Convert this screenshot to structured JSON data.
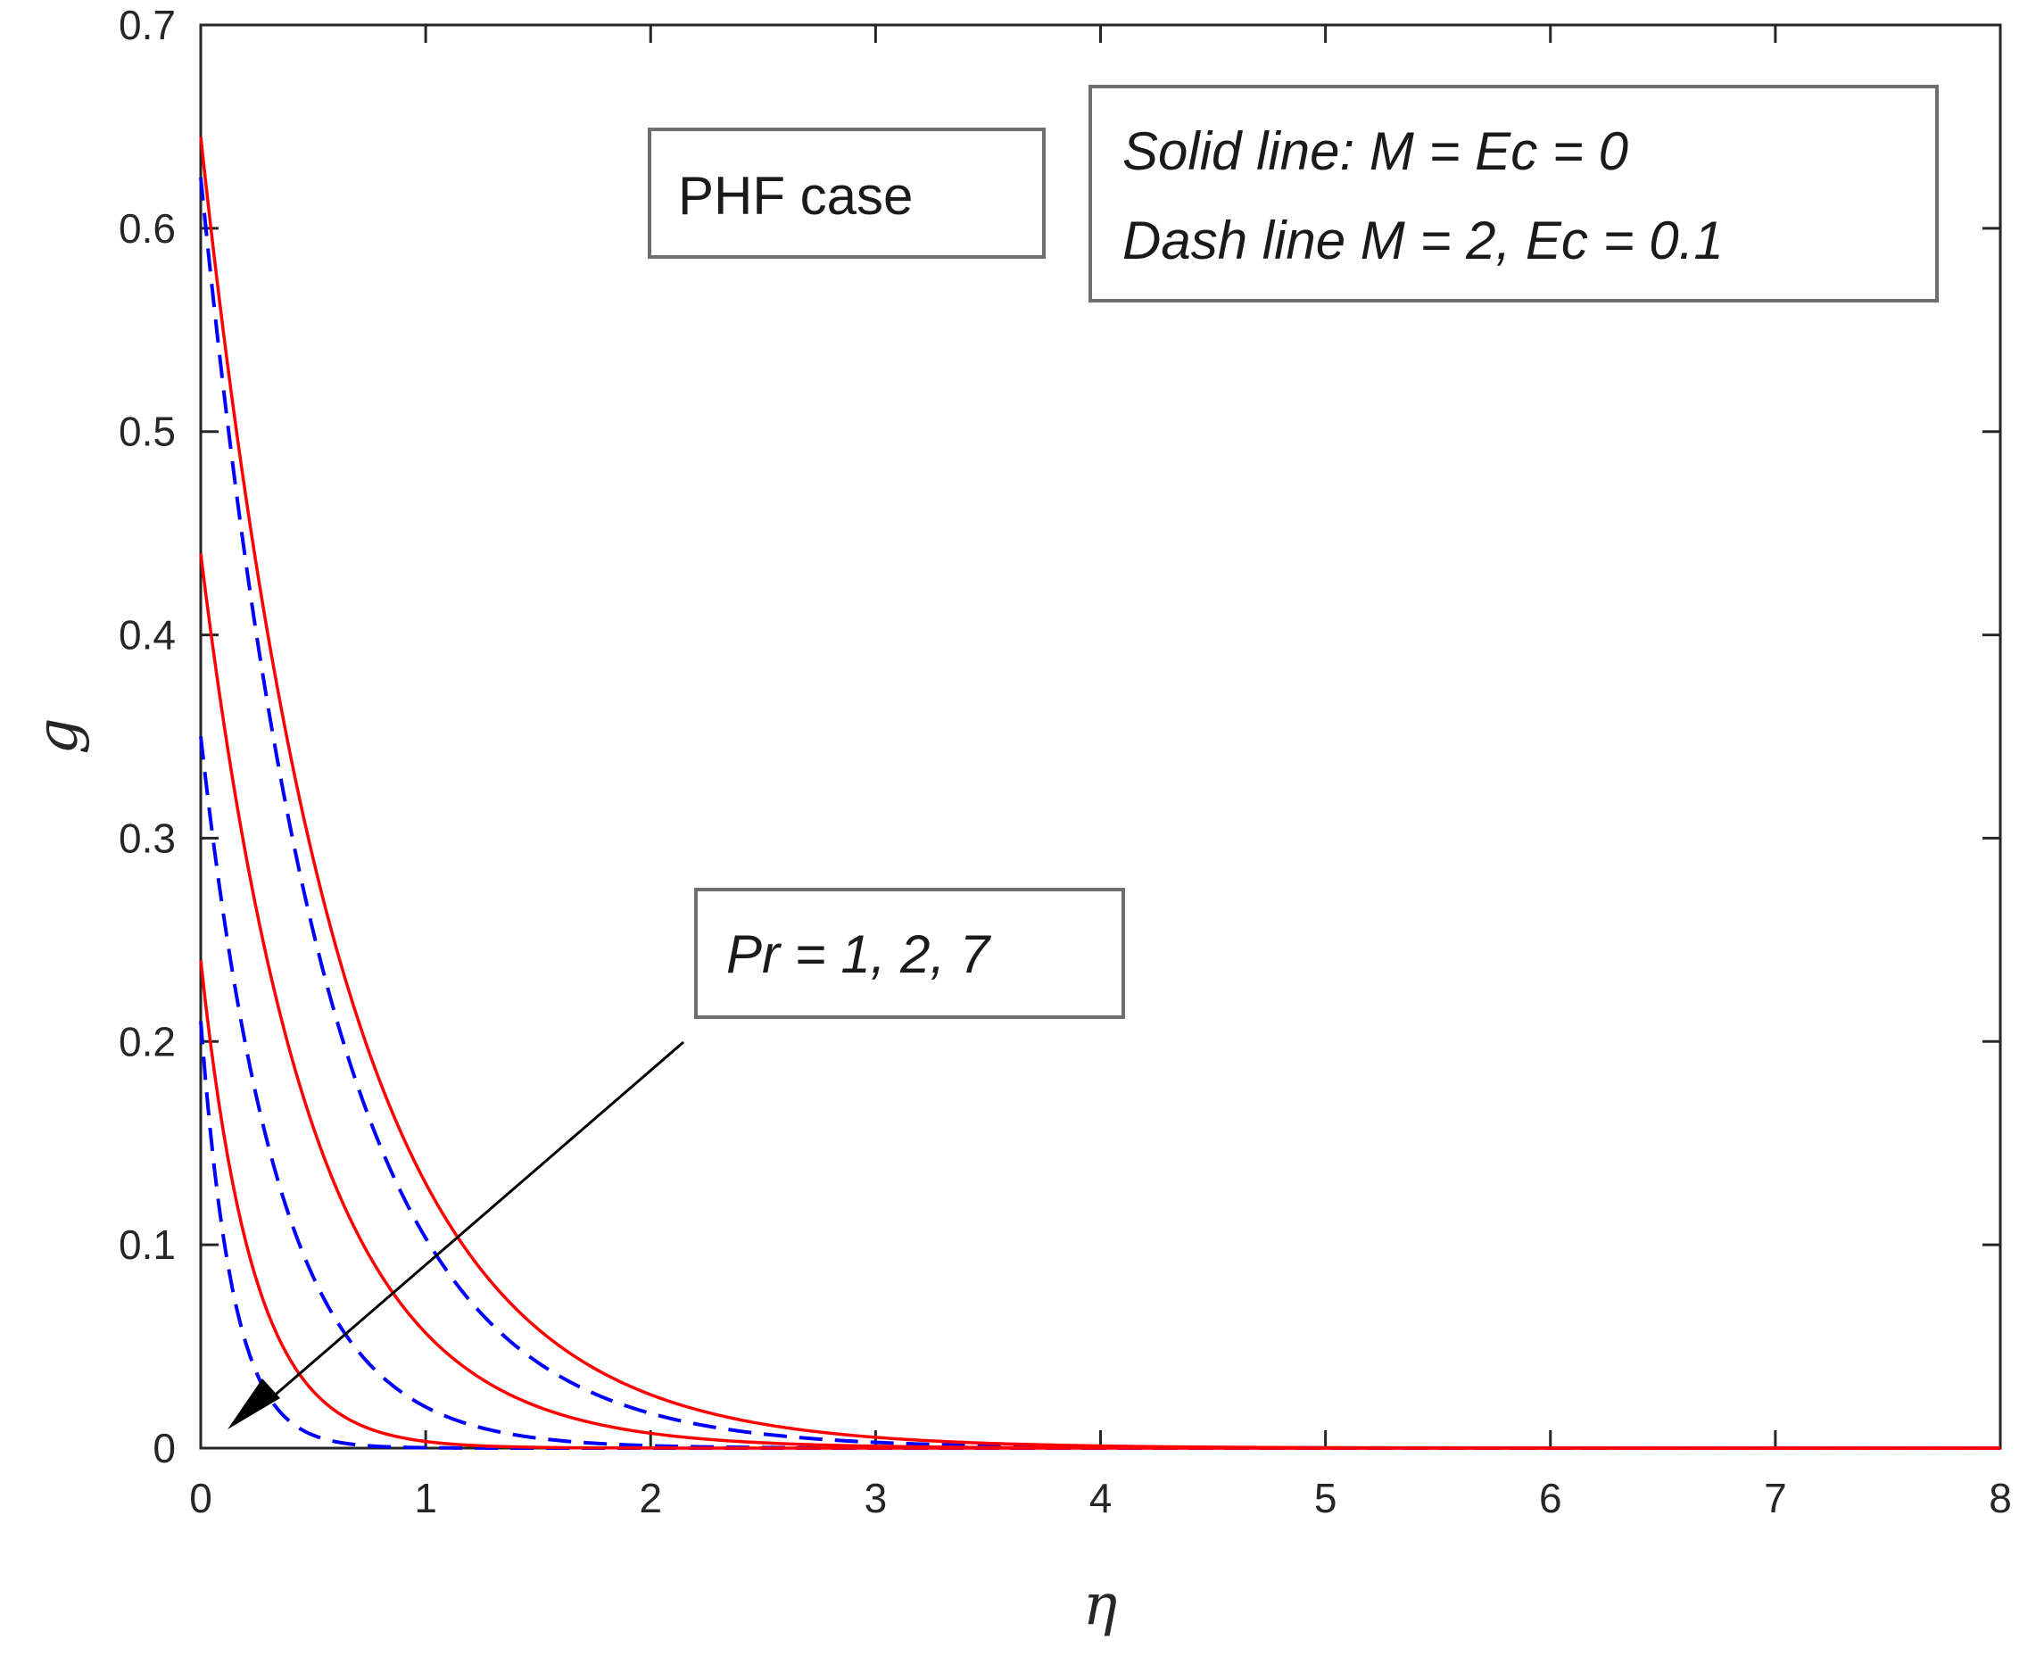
{
  "chart_data": {
    "type": "line",
    "title": "",
    "xlabel": "η",
    "ylabel": "g",
    "xlim": [
      0,
      8
    ],
    "ylim": [
      0,
      0.7
    ],
    "xticks": [
      "0",
      "1",
      "2",
      "3",
      "4",
      "5",
      "6",
      "7",
      "8"
    ],
    "yticks": [
      "0",
      "0.1",
      "0.2",
      "0.3",
      "0.4",
      "0.5",
      "0.6",
      "0.7"
    ],
    "grid": false,
    "colors": {
      "solid": "#ff0000",
      "dash": "#0000ff",
      "text": "#262626"
    },
    "series": [
      {
        "style": "solid",
        "color": "#ff0000",
        "g0": 0.645,
        "decay": 1.6
      },
      {
        "style": "solid",
        "color": "#ff0000",
        "g0": 0.44,
        "decay": 2.05
      },
      {
        "style": "solid",
        "color": "#ff0000",
        "g0": 0.24,
        "decay": 4.3
      },
      {
        "style": "dash",
        "color": "#0000ff",
        "g0": 0.625,
        "decay": 1.8
      },
      {
        "style": "dash",
        "color": "#0000ff",
        "g0": 0.35,
        "decay": 2.85
      },
      {
        "style": "dash",
        "color": "#0000ff",
        "g0": 0.21,
        "decay": 7.0
      }
    ],
    "annotations": {
      "case_box": "PHF case",
      "legend_line1": "Solid line: M = Ec = 0",
      "legend_line2": "Dash line M = 2, Ec = 0.1",
      "pr_box": "Pr = 1, 2, 7"
    }
  }
}
